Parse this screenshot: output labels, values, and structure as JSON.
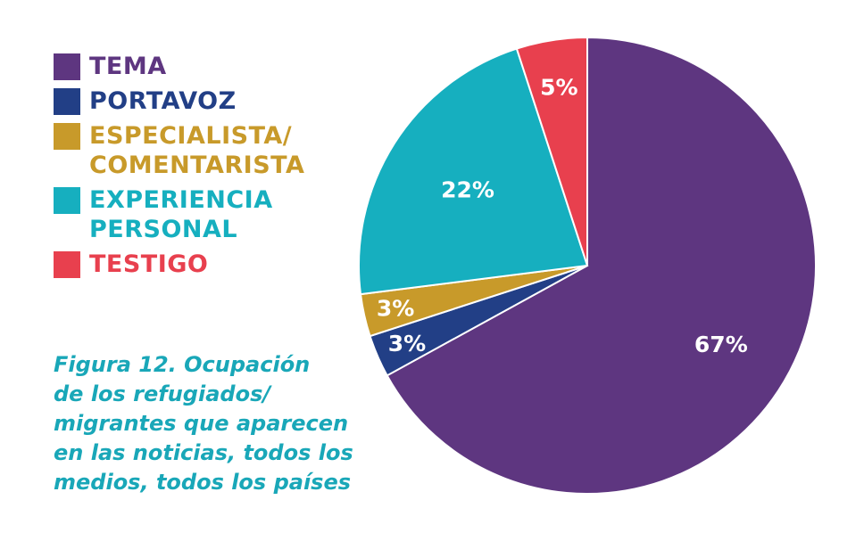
{
  "chart_data": {
    "type": "pie",
    "categories": [
      "TEMA",
      "PORTAVOZ",
      "ESPECIALISTA/ COMENTARISTA",
      "EXPERIENCIA PERSONAL",
      "TESTIGO"
    ],
    "values": [
      67,
      3,
      3,
      22,
      5
    ],
    "data_labels": [
      "67%",
      "3%",
      "3%",
      "22%",
      "5%"
    ],
    "colors": [
      "#5e3680",
      "#223f86",
      "#c89a2a",
      "#16afbf",
      "#e8404e"
    ],
    "legend_placement": "left"
  },
  "legend": [
    {
      "lines": [
        "TEMA"
      ],
      "color": "#5e3680"
    },
    {
      "lines": [
        "PORTAVOZ"
      ],
      "color": "#223f86"
    },
    {
      "lines": [
        "ESPECIALISTA/",
        "COMENTARISTA"
      ],
      "color": "#c89a2a"
    },
    {
      "lines": [
        "EXPERIENCIA",
        "PERSONAL"
      ],
      "color": "#16afbf"
    },
    {
      "lines": [
        "TESTIGO"
      ],
      "color": "#e8404e"
    }
  ],
  "caption": {
    "lines": [
      "Figura 12. Ocupación",
      "de los refugiados/",
      "migrantes que aparecen",
      "en las noticias, todos los",
      "medios, todos los países"
    ],
    "color": "#19a7b8"
  }
}
